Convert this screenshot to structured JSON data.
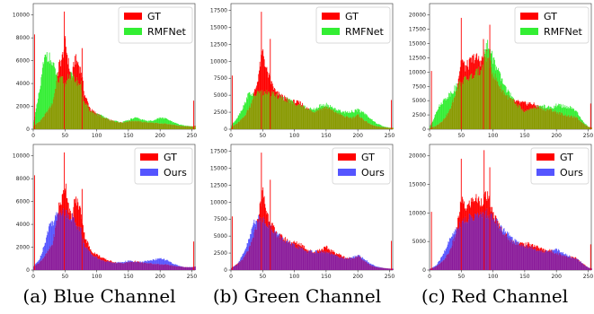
{
  "captions": [
    "(a) Blue Channel",
    "(b) Green Channel",
    "(c) Red Channel"
  ],
  "colors": {
    "gt": "#ff0000",
    "rmfnet": "#33ee33",
    "ours": "#5555ff",
    "gt_rmfnet_overlap": "#889900",
    "gt_ours_overlap": "#8a1a9a"
  },
  "chart_data": [
    {
      "type": "area",
      "channel": "Blue",
      "xlim": [
        0,
        255
      ],
      "ylim": [
        0,
        11000
      ],
      "xticks": [
        0,
        50,
        100,
        150,
        200,
        250
      ],
      "yticks": [
        0,
        2000,
        4000,
        6000,
        8000,
        10000
      ],
      "legend_placement": "top-right",
      "series": [
        {
          "name": "GT",
          "x": [
            0,
            10,
            20,
            30,
            35,
            40,
            45,
            50,
            55,
            60,
            65,
            70,
            75,
            80,
            90,
            100,
            110,
            120,
            130,
            140,
            150,
            160,
            170,
            180,
            190,
            200,
            210,
            220,
            230,
            240,
            250,
            255
          ],
          "y": [
            300,
            700,
            1400,
            2300,
            3800,
            5600,
            6200,
            7600,
            5800,
            4300,
            6200,
            5800,
            5100,
            3100,
            1700,
            1350,
            1000,
            800,
            650,
            600,
            700,
            750,
            650,
            600,
            550,
            480,
            500,
            380,
            300,
            250,
            250,
            300
          ]
        },
        {
          "name": "RMFNet",
          "x": [
            0,
            5,
            10,
            15,
            20,
            25,
            30,
            35,
            40,
            45,
            50,
            55,
            60,
            65,
            70,
            75,
            80,
            90,
            100,
            110,
            120,
            130,
            140,
            150,
            160,
            170,
            180,
            190,
            200,
            210,
            220,
            230,
            240,
            250,
            255
          ],
          "y": [
            600,
            2000,
            3500,
            5500,
            6700,
            6200,
            5600,
            5000,
            4100,
            4400,
            3900,
            4800,
            4600,
            4400,
            4100,
            3900,
            2300,
            1600,
            1300,
            1100,
            800,
            700,
            600,
            800,
            1000,
            850,
            700,
            800,
            1000,
            900,
            600,
            400,
            300,
            250,
            250
          ]
        }
      ],
      "spikes": [
        {
          "x": 49,
          "y": 10300
        },
        {
          "x": 2,
          "y": 8300
        },
        {
          "x": 77,
          "y": 7100
        },
        {
          "x": 253,
          "y": 2500
        }
      ]
    },
    {
      "type": "area",
      "channel": "Green",
      "xlim": [
        0,
        255
      ],
      "ylim": [
        0,
        18500
      ],
      "xticks": [
        0,
        50,
        100,
        150,
        200,
        250
      ],
      "yticks": [
        0,
        2500,
        5000,
        7500,
        10000,
        12500,
        15000,
        17500
      ],
      "legend_placement": "top-right",
      "series": [
        {
          "name": "GT",
          "x": [
            0,
            10,
            20,
            30,
            40,
            45,
            50,
            55,
            60,
            65,
            70,
            80,
            90,
            100,
            110,
            120,
            130,
            140,
            150,
            160,
            170,
            180,
            190,
            200,
            210,
            220,
            230,
            240,
            250,
            255
          ],
          "y": [
            300,
            900,
            1800,
            3500,
            6500,
            9200,
            11500,
            8800,
            7500,
            6500,
            5400,
            4800,
            4200,
            4000,
            3800,
            3000,
            2600,
            3000,
            3300,
            2700,
            2300,
            1800,
            1700,
            2100,
            1300,
            700,
            400,
            300,
            200,
            200
          ]
        },
        {
          "name": "RMFNet",
          "x": [
            0,
            10,
            20,
            25,
            30,
            35,
            40,
            45,
            50,
            55,
            60,
            70,
            80,
            90,
            100,
            110,
            120,
            130,
            140,
            150,
            160,
            170,
            180,
            190,
            200,
            210,
            220,
            230,
            240,
            250,
            255
          ],
          "y": [
            500,
            1800,
            3500,
            4800,
            5400,
            4800,
            5200,
            5600,
            5300,
            5400,
            5200,
            5000,
            4500,
            4300,
            3800,
            3500,
            3000,
            2900,
            3400,
            3600,
            3200,
            2700,
            2500,
            2600,
            2800,
            2400,
            1500,
            800,
            400,
            200,
            200
          ]
        }
      ],
      "spikes": [
        {
          "x": 48,
          "y": 17300
        },
        {
          "x": 2,
          "y": 7900
        },
        {
          "x": 62,
          "y": 13300
        },
        {
          "x": 253,
          "y": 4300
        }
      ]
    },
    {
      "type": "area",
      "channel": "Red",
      "xlim": [
        0,
        255
      ],
      "ylim": [
        0,
        22000
      ],
      "xticks": [
        0,
        50,
        100,
        150,
        200,
        250
      ],
      "yticks": [
        0,
        2500,
        5000,
        7500,
        10000,
        12500,
        15000,
        17500,
        20000
      ],
      "legend_placement": "top-right",
      "series": [
        {
          "name": "GT",
          "x": [
            0,
            10,
            20,
            30,
            40,
            45,
            50,
            55,
            60,
            70,
            80,
            90,
            100,
            110,
            120,
            130,
            140,
            150,
            160,
            170,
            180,
            190,
            200,
            210,
            220,
            230,
            240,
            250,
            255
          ],
          "y": [
            200,
            600,
            1500,
            3000,
            6000,
            9000,
            12500,
            10800,
            11200,
            12600,
            12000,
            13000,
            9700,
            7600,
            6000,
            5000,
            4700,
            4500,
            4500,
            4000,
            3500,
            3400,
            3000,
            2600,
            2300,
            2100,
            1200,
            400,
            300
          ]
        },
        {
          "name": "RMFNet",
          "x": [
            0,
            5,
            10,
            20,
            30,
            40,
            50,
            60,
            70,
            80,
            85,
            90,
            95,
            100,
            110,
            120,
            130,
            140,
            150,
            160,
            170,
            180,
            190,
            200,
            210,
            220,
            230,
            240,
            250,
            255
          ],
          "y": [
            500,
            1500,
            3200,
            4800,
            6000,
            7200,
            8300,
            8900,
            9400,
            10400,
            12800,
            14800,
            14000,
            12200,
            9300,
            7200,
            5300,
            4000,
            3100,
            3500,
            3900,
            4000,
            3700,
            4200,
            4000,
            3800,
            3200,
            1500,
            400,
            300
          ]
        }
      ],
      "spikes": [
        {
          "x": 50,
          "y": 19500
        },
        {
          "x": 3,
          "y": 10200
        },
        {
          "x": 95,
          "y": 18300
        },
        {
          "x": 85,
          "y": 15800
        },
        {
          "x": 254,
          "y": 4500
        }
      ]
    },
    {
      "type": "area",
      "channel": "Blue",
      "xlim": [
        0,
        255
      ],
      "ylim": [
        0,
        11000
      ],
      "xticks": [
        0,
        50,
        100,
        150,
        200,
        250
      ],
      "yticks": [
        0,
        2000,
        4000,
        6000,
        8000,
        10000
      ],
      "legend_placement": "top-right",
      "series": [
        {
          "name": "GT",
          "x": [
            0,
            10,
            20,
            30,
            35,
            40,
            45,
            50,
            55,
            60,
            65,
            70,
            75,
            80,
            90,
            100,
            110,
            120,
            130,
            140,
            150,
            160,
            170,
            180,
            190,
            200,
            210,
            220,
            230,
            240,
            250,
            255
          ],
          "y": [
            300,
            700,
            1400,
            2300,
            3800,
            5600,
            6200,
            7600,
            5800,
            4300,
            6200,
            5800,
            5100,
            3100,
            1700,
            1350,
            1000,
            800,
            650,
            600,
            700,
            750,
            650,
            600,
            550,
            480,
            500,
            380,
            300,
            250,
            250,
            300
          ]
        },
        {
          "name": "Ours",
          "x": [
            0,
            10,
            20,
            25,
            30,
            35,
            40,
            45,
            50,
            55,
            60,
            65,
            70,
            75,
            80,
            90,
            100,
            110,
            120,
            130,
            140,
            150,
            160,
            170,
            180,
            190,
            200,
            210,
            220,
            230,
            240,
            250,
            255
          ],
          "y": [
            300,
            1000,
            2800,
            4000,
            4200,
            4600,
            5200,
            5200,
            5000,
            4800,
            4700,
            4300,
            3700,
            3500,
            2200,
            1500,
            1100,
            800,
            700,
            650,
            700,
            800,
            700,
            700,
            800,
            900,
            1000,
            850,
            550,
            350,
            250,
            250,
            300
          ]
        }
      ],
      "spikes": [
        {
          "x": 49,
          "y": 10300
        },
        {
          "x": 2,
          "y": 8300
        },
        {
          "x": 77,
          "y": 7100
        },
        {
          "x": 253,
          "y": 2500
        }
      ]
    },
    {
      "type": "area",
      "channel": "Green",
      "xlim": [
        0,
        255
      ],
      "ylim": [
        0,
        18500
      ],
      "xticks": [
        0,
        50,
        100,
        150,
        200,
        250
      ],
      "yticks": [
        0,
        2500,
        5000,
        7500,
        10000,
        12500,
        15000,
        17500
      ],
      "legend_placement": "top-right",
      "series": [
        {
          "name": "GT",
          "x": [
            0,
            10,
            20,
            30,
            40,
            45,
            50,
            55,
            60,
            65,
            70,
            80,
            90,
            100,
            110,
            120,
            130,
            140,
            150,
            160,
            170,
            180,
            190,
            200,
            210,
            220,
            230,
            240,
            250,
            255
          ],
          "y": [
            300,
            900,
            1800,
            3500,
            6500,
            9200,
            11500,
            8800,
            7500,
            6500,
            5400,
            4800,
            4200,
            4000,
            3800,
            3000,
            2600,
            3000,
            3300,
            2700,
            2300,
            1800,
            1700,
            2100,
            1300,
            700,
            400,
            300,
            200,
            200
          ]
        },
        {
          "name": "Ours",
          "x": [
            0,
            10,
            20,
            30,
            35,
            40,
            45,
            50,
            55,
            60,
            70,
            80,
            90,
            100,
            110,
            120,
            130,
            140,
            150,
            160,
            170,
            180,
            190,
            200,
            210,
            220,
            230,
            240,
            250,
            255
          ],
          "y": [
            300,
            900,
            2500,
            5000,
            7000,
            7500,
            7400,
            7600,
            7000,
            6500,
            5500,
            4600,
            4000,
            3500,
            3200,
            2700,
            2700,
            2700,
            2600,
            2300,
            1900,
            1700,
            1800,
            2200,
            1600,
            900,
            500,
            300,
            200,
            200
          ]
        }
      ],
      "spikes": [
        {
          "x": 48,
          "y": 17300
        },
        {
          "x": 2,
          "y": 7900
        },
        {
          "x": 62,
          "y": 13300
        },
        {
          "x": 253,
          "y": 4300
        }
      ]
    },
    {
      "type": "area",
      "channel": "Red",
      "xlim": [
        0,
        255
      ],
      "ylim": [
        0,
        22000
      ],
      "xticks": [
        0,
        50,
        100,
        150,
        200,
        250
      ],
      "yticks": [
        0,
        5000,
        10000,
        15000,
        20000
      ],
      "legend_placement": "top-right",
      "series": [
        {
          "name": "GT",
          "x": [
            0,
            10,
            20,
            30,
            40,
            45,
            50,
            55,
            60,
            70,
            80,
            90,
            100,
            110,
            120,
            130,
            140,
            150,
            160,
            170,
            180,
            190,
            200,
            210,
            220,
            230,
            240,
            250,
            255
          ],
          "y": [
            200,
            600,
            1500,
            3000,
            6000,
            9000,
            12500,
            10800,
            11200,
            12600,
            12000,
            13000,
            9700,
            7600,
            6000,
            5000,
            4700,
            4500,
            4500,
            4000,
            3500,
            3400,
            3000,
            2600,
            2300,
            2100,
            1200,
            400,
            300
          ]
        },
        {
          "name": "Ours",
          "x": [
            0,
            10,
            20,
            30,
            40,
            50,
            60,
            70,
            80,
            90,
            100,
            110,
            120,
            130,
            140,
            150,
            160,
            170,
            180,
            190,
            200,
            210,
            220,
            230,
            240,
            250,
            255
          ],
          "y": [
            200,
            800,
            2500,
            5000,
            7000,
            8500,
            9000,
            9400,
            9600,
            10000,
            9200,
            7800,
            6500,
            5500,
            4700,
            4200,
            4000,
            3500,
            3200,
            3300,
            3600,
            3000,
            2400,
            2100,
            1200,
            400,
            300
          ]
        }
      ],
      "spikes": [
        {
          "x": 50,
          "y": 19500
        },
        {
          "x": 3,
          "y": 10200
        },
        {
          "x": 86,
          "y": 21000
        },
        {
          "x": 95,
          "y": 18000
        },
        {
          "x": 254,
          "y": 4500
        }
      ]
    }
  ]
}
